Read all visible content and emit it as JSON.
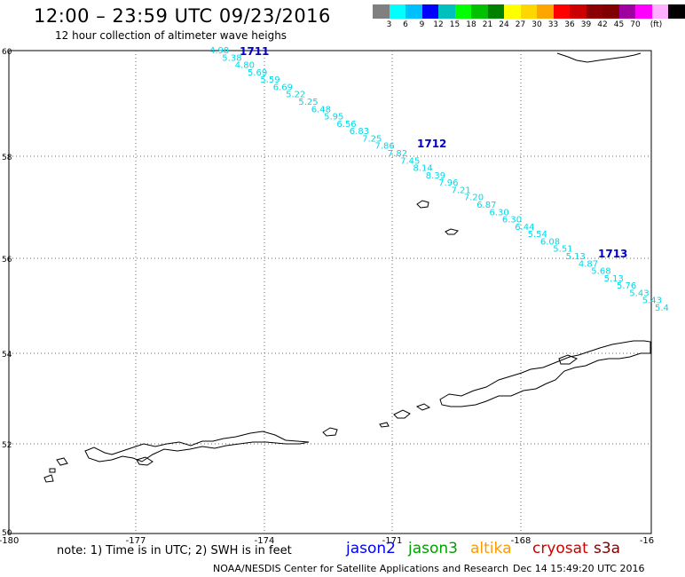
{
  "header": {
    "title": "12:00 – 23:59 UTC 09/23/2016",
    "subtitle": "12 hour collection of altimeter wave heighs"
  },
  "colorbar": {
    "colors": [
      "#808080",
      "#00ffff",
      "#00bfff",
      "#0000ff",
      "#00bfbf",
      "#00ff00",
      "#00c000",
      "#008000",
      "#ffff00",
      "#ffd700",
      "#ffa500",
      "#ff0000",
      "#cc0000",
      "#8b0000",
      "#800000",
      "#a000a0",
      "#ff00ff",
      "#ffb0ff",
      "#000000"
    ],
    "labels": [
      "3",
      "6",
      "9",
      "12",
      "15",
      "18",
      "21",
      "24",
      "27",
      "30",
      "33",
      "36",
      "39",
      "42",
      "45",
      "70",
      "(ft)"
    ]
  },
  "map": {
    "lon_ticks": [
      "-180",
      "-177",
      "-174",
      "-171",
      "-168",
      "-16"
    ],
    "lat_ticks": [
      "60",
      "58",
      "56",
      "54",
      "52",
      "50"
    ],
    "passes": [
      {
        "label": "1711",
        "color": "#0000cc"
      },
      {
        "label": "1712",
        "color": "#0000cc"
      },
      {
        "label": "1713",
        "color": "#0000cc"
      }
    ],
    "track_color": "#00d8e8",
    "track_values": [
      "4.98",
      "5.38",
      "4.80",
      "5.69",
      "5.59",
      "6.69",
      "5.22",
      "5.25",
      "6.48",
      "5.95",
      "6.56",
      "6.83",
      "7.25",
      "7.86",
      "7.82",
      "7.45",
      "8.14",
      "8.39",
      "7.96",
      "7.21",
      "7.20",
      "6.87",
      "6.30",
      "6.30",
      "6.44",
      "5.54",
      "6.08",
      "5.51",
      "5.13",
      "4.87",
      "5.68",
      "5.13",
      "5.76",
      "5.43",
      "5.43",
      "5.4"
    ]
  },
  "note": "note: 1) Time is in UTC; 2) SWH is in feet",
  "satellites": [
    {
      "name": "jason2",
      "color": "#0000ff"
    },
    {
      "name": "jason3",
      "color": "#00a000"
    },
    {
      "name": "altika",
      "color": "#ff9900"
    },
    {
      "name": "cryosat",
      "color": "#cc0000"
    },
    {
      "name": "s3a",
      "color": "#800000"
    }
  ],
  "footer": {
    "org": "NOAA/NESDIS Center for Satellite Applications and Research",
    "date": "Dec 14 15:49:20 UTC 2016"
  }
}
